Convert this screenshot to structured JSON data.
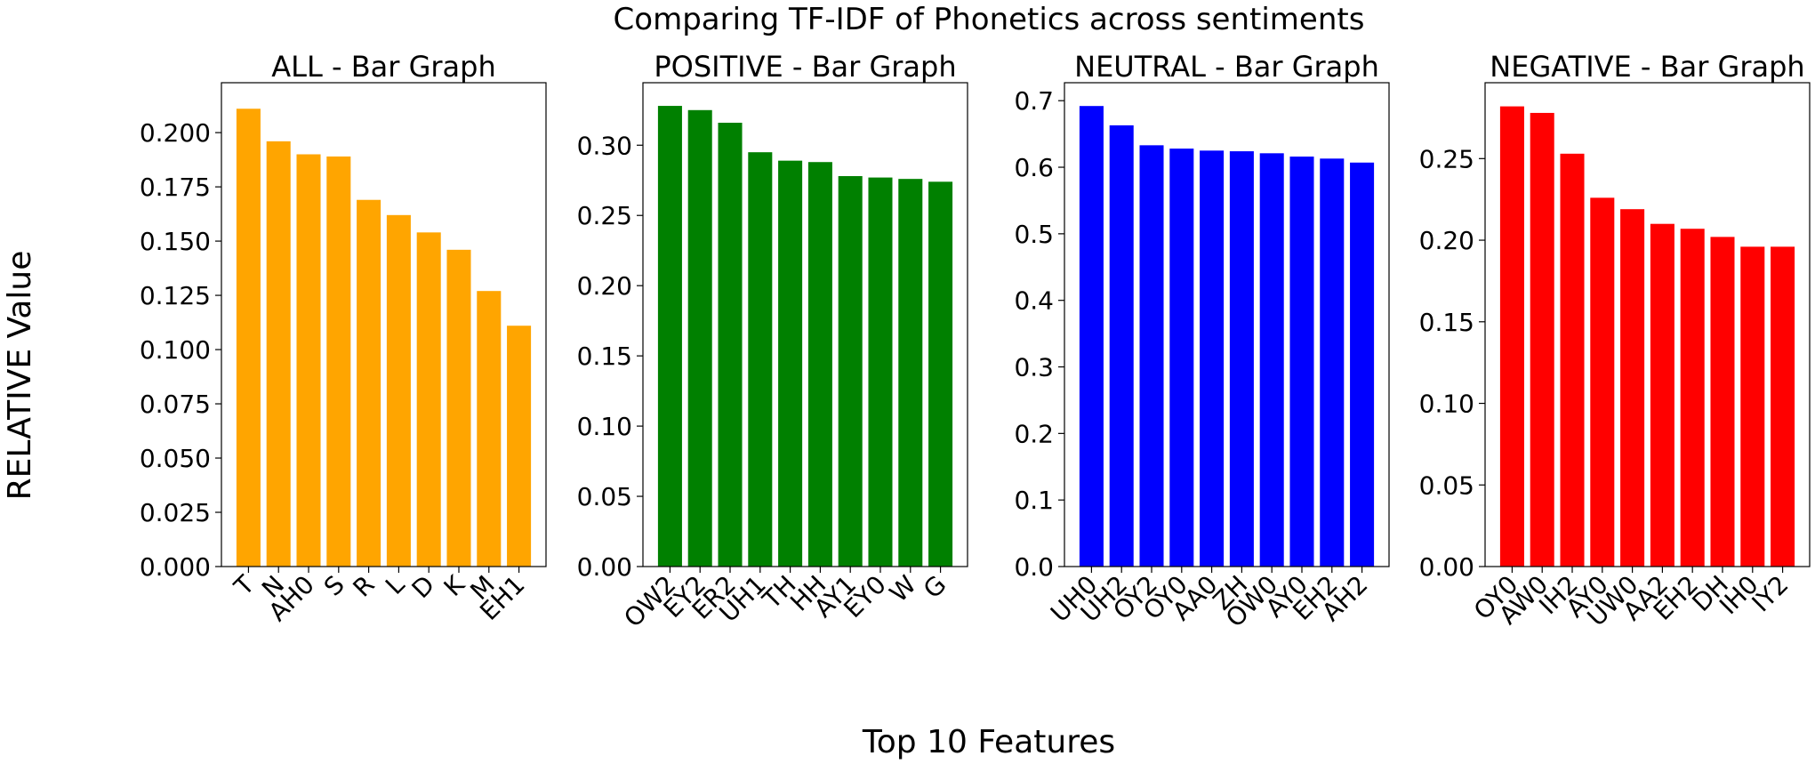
{
  "figure": {
    "title": "Comparing TF-IDF of Phonetics across sentiments",
    "ylabel": "RELATIVE Value",
    "xlabel": "Top 10 Features"
  },
  "chart_data": [
    {
      "type": "bar",
      "title": "ALL - Bar Graph",
      "color": "#FFA500",
      "categories": [
        "T",
        "N",
        "AH0",
        "S",
        "R",
        "L",
        "D",
        "K",
        "M",
        "EH1"
      ],
      "values": [
        0.211,
        0.196,
        0.19,
        0.189,
        0.169,
        0.162,
        0.154,
        0.146,
        0.127,
        0.111
      ],
      "ylim": [
        0,
        0.223
      ],
      "yticks": [
        0.0,
        0.025,
        0.05,
        0.075,
        0.1,
        0.125,
        0.15,
        0.175,
        0.2
      ],
      "ytick_labels": [
        "0.000",
        "0.025",
        "0.050",
        "0.075",
        "0.100",
        "0.125",
        "0.150",
        "0.175",
        "0.200"
      ]
    },
    {
      "type": "bar",
      "title": "POSITIVE - Bar Graph",
      "color": "#008000",
      "categories": [
        "OW2",
        "EY2",
        "ER2",
        "UH1",
        "TH",
        "HH",
        "AY1",
        "EY0",
        "W",
        "G"
      ],
      "values": [
        0.328,
        0.325,
        0.316,
        0.295,
        0.289,
        0.288,
        0.278,
        0.277,
        0.276,
        0.274
      ],
      "ylim": [
        0,
        0.3445
      ],
      "yticks": [
        0.0,
        0.05,
        0.1,
        0.15,
        0.2,
        0.25,
        0.3
      ],
      "ytick_labels": [
        "0.00",
        "0.05",
        "0.10",
        "0.15",
        "0.20",
        "0.25",
        "0.30"
      ]
    },
    {
      "type": "bar",
      "title": "NEUTRAL - Bar Graph",
      "color": "#0000FF",
      "categories": [
        "UH0",
        "UH2",
        "OY2",
        "OY0",
        "AA0",
        "ZH",
        "OW0",
        "AY0",
        "EH2",
        "AH2"
      ],
      "values": [
        0.692,
        0.663,
        0.633,
        0.628,
        0.625,
        0.624,
        0.621,
        0.616,
        0.613,
        0.607
      ],
      "ylim": [
        0,
        0.727
      ],
      "yticks": [
        0.0,
        0.1,
        0.2,
        0.3,
        0.4,
        0.5,
        0.6,
        0.7
      ],
      "ytick_labels": [
        "0.0",
        "0.1",
        "0.2",
        "0.3",
        "0.4",
        "0.5",
        "0.6",
        "0.7"
      ]
    },
    {
      "type": "bar",
      "title": "NEGATIVE - Bar Graph",
      "color": "#FF0000",
      "categories": [
        "OY0",
        "AW0",
        "IH2",
        "AY0",
        "UW0",
        "AA2",
        "EH2",
        "DH",
        "IH0",
        "IY2"
      ],
      "values": [
        0.282,
        0.278,
        0.253,
        0.226,
        0.219,
        0.21,
        0.207,
        0.202,
        0.196,
        0.196
      ],
      "ylim": [
        0,
        0.2965
      ],
      "yticks": [
        0.0,
        0.05,
        0.1,
        0.15,
        0.2,
        0.25
      ],
      "ytick_labels": [
        "0.00",
        "0.05",
        "0.10",
        "0.15",
        "0.20",
        "0.25"
      ]
    }
  ]
}
